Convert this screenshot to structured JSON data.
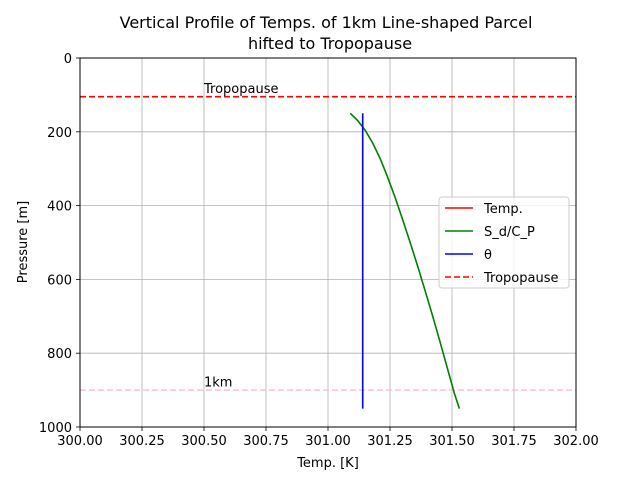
{
  "chart_data": {
    "type": "line",
    "title_line1": "Vertical Profile of Temps. of 1km Line-shaped Parcel",
    "title_line2": "hifted to Tropopause",
    "xlabel": "Temp. [K]",
    "ylabel": "Pressure [m]",
    "xlim": [
      300.0,
      302.0
    ],
    "ylim": [
      1000,
      0
    ],
    "y_inverted": true,
    "grid": true,
    "legend_position": "center-right",
    "xticks": [
      "300.00",
      "300.25",
      "300.50",
      "300.75",
      "301.00",
      "301.25",
      "301.50",
      "301.75",
      "302.00"
    ],
    "yticks": [
      "0",
      "200",
      "400",
      "600",
      "800",
      "1000"
    ],
    "series": [
      {
        "name": "Temp.",
        "style": "solid",
        "color": "#ff0000",
        "x": [],
        "y": []
      },
      {
        "name": "S_d/C_P",
        "style": "solid",
        "color": "#008000",
        "x": [
          301.09,
          301.12,
          301.15,
          301.18,
          301.21,
          301.24,
          301.27,
          301.3,
          301.33,
          301.36,
          301.39,
          301.42,
          301.45,
          301.48,
          301.51,
          301.53
        ],
        "y": [
          150,
          170,
          196,
          230,
          272,
          322,
          377,
          436,
          497,
          561,
          627,
          695,
          765,
          837,
          910,
          950
        ]
      },
      {
        "name": "θ",
        "style": "solid",
        "color": "#0000ff",
        "x": [
          301.14,
          301.14
        ],
        "y": [
          150,
          950
        ]
      },
      {
        "name": "Tropopause",
        "style": "dashed",
        "color": "#ff0000",
        "x": [
          300.0,
          302.0
        ],
        "y": [
          105,
          105
        ]
      }
    ],
    "reference_lines": [
      {
        "y": 900,
        "color": "#ffc0cb",
        "style": "dashed"
      }
    ],
    "annotations": [
      {
        "text": "Tropopause",
        "x": 300.5,
        "y": 95
      },
      {
        "text": "1km",
        "x": 300.5,
        "y": 890
      }
    ]
  }
}
